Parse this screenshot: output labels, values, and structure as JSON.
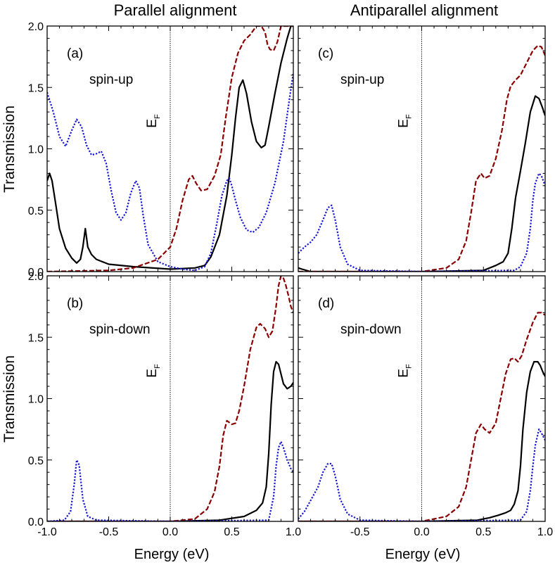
{
  "figure": {
    "col_titles": [
      "Parallel alignment",
      "Antiparallel alignment"
    ],
    "ylabel": "Transmission",
    "xlabel": "Energy (eV)",
    "ef_label_main": "E",
    "ef_label_sub": "F"
  },
  "colors": {
    "black": "#000000",
    "darkred": "#8b0000",
    "blue": "#1515d8"
  },
  "chart_data": [
    {
      "type": "line",
      "panel": "(a)",
      "annotation": "spin-up",
      "xlim": [
        -1.0,
        1.0
      ],
      "ylim": [
        0.0,
        2.0
      ],
      "xticks": [
        "-1.0",
        "-0.5",
        "0.0",
        "0.5",
        "1.0"
      ],
      "yticks": [
        "0.0",
        "0.5",
        "1.0",
        "1.5",
        "2.0"
      ],
      "series": [
        {
          "style": "solid",
          "color": "black",
          "x": [
            -1.0,
            -0.98,
            -0.96,
            -0.93,
            -0.9,
            -0.85,
            -0.8,
            -0.76,
            -0.73,
            -0.71,
            -0.69,
            -0.67,
            -0.64,
            -0.6,
            -0.5,
            -0.3,
            0.0,
            0.2,
            0.28,
            0.33,
            0.4,
            0.46,
            0.5,
            0.53,
            0.56,
            0.59,
            0.62,
            0.66,
            0.7,
            0.74,
            0.77,
            0.8,
            0.85,
            0.9,
            0.95,
            0.98,
            1.0
          ],
          "y": [
            0.74,
            0.8,
            0.74,
            0.55,
            0.35,
            0.19,
            0.11,
            0.07,
            0.1,
            0.2,
            0.35,
            0.2,
            0.14,
            0.1,
            0.06,
            0.04,
            0.02,
            0.03,
            0.05,
            0.12,
            0.3,
            0.62,
            0.95,
            1.25,
            1.5,
            1.56,
            1.45,
            1.22,
            1.06,
            1.01,
            1.03,
            1.18,
            1.45,
            1.7,
            1.9,
            2.0,
            2.0
          ]
        },
        {
          "style": "dashed",
          "color": "darkred",
          "x": [
            -1.0,
            -0.5,
            -0.3,
            -0.1,
            0.0,
            0.05,
            0.1,
            0.15,
            0.18,
            0.21,
            0.25,
            0.3,
            0.36,
            0.41,
            0.45,
            0.5,
            0.55,
            0.6,
            0.65,
            0.7,
            0.74,
            0.77,
            0.79,
            0.81,
            0.84,
            0.87,
            0.9,
            0.93,
            0.96,
            1.0
          ],
          "y": [
            0.0,
            0.01,
            0.03,
            0.1,
            0.2,
            0.35,
            0.58,
            0.75,
            0.78,
            0.72,
            0.66,
            0.67,
            0.78,
            0.95,
            1.25,
            1.58,
            1.78,
            1.88,
            1.93,
            2.0,
            2.0,
            1.95,
            1.85,
            1.81,
            1.8,
            1.87,
            2.0,
            2.0,
            2.0,
            2.0
          ]
        },
        {
          "style": "dotted",
          "color": "blue",
          "x": [
            -1.0,
            -0.95,
            -0.9,
            -0.85,
            -0.8,
            -0.76,
            -0.72,
            -0.68,
            -0.64,
            -0.6,
            -0.56,
            -0.52,
            -0.48,
            -0.44,
            -0.4,
            -0.36,
            -0.32,
            -0.28,
            -0.25,
            -0.22,
            -0.18,
            -0.1,
            0.0,
            0.1,
            0.2,
            0.28,
            0.33,
            0.38,
            0.42,
            0.46,
            0.48,
            0.5,
            0.53,
            0.57,
            0.62,
            0.67,
            0.72,
            0.78,
            0.85,
            0.92,
            0.97,
            1.0
          ],
          "y": [
            1.46,
            1.3,
            1.1,
            1.02,
            1.15,
            1.24,
            1.18,
            1.03,
            0.95,
            0.96,
            0.98,
            0.88,
            0.66,
            0.48,
            0.42,
            0.48,
            0.64,
            0.74,
            0.68,
            0.46,
            0.22,
            0.08,
            0.04,
            0.02,
            0.01,
            0.04,
            0.15,
            0.4,
            0.62,
            0.74,
            0.76,
            0.7,
            0.58,
            0.44,
            0.34,
            0.32,
            0.36,
            0.48,
            0.72,
            1.06,
            1.42,
            1.62
          ]
        }
      ]
    },
    {
      "type": "line",
      "panel": "(b)",
      "annotation": "spin-down",
      "xlim": [
        -1.0,
        1.0
      ],
      "ylim": [
        0.0,
        2.0
      ],
      "xticks": [
        "-1.0",
        "-0.5",
        "0.0",
        "0.5",
        "1.0"
      ],
      "yticks": [
        "0.0",
        "0.5",
        "1.0",
        "1.5",
        "2.0"
      ],
      "series": [
        {
          "style": "solid",
          "color": "black",
          "x": [
            -1.0,
            0.0,
            0.4,
            0.6,
            0.7,
            0.75,
            0.78,
            0.8,
            0.82,
            0.84,
            0.86,
            0.88,
            0.9,
            0.92,
            0.95,
            0.98,
            1.0
          ],
          "y": [
            0.0,
            0.0,
            0.01,
            0.04,
            0.09,
            0.15,
            0.28,
            0.55,
            0.95,
            1.22,
            1.3,
            1.28,
            1.2,
            1.12,
            1.08,
            1.1,
            1.13
          ]
        },
        {
          "style": "dashed",
          "color": "darkred",
          "x": [
            -1.0,
            0.0,
            0.2,
            0.3,
            0.36,
            0.4,
            0.43,
            0.46,
            0.5,
            0.53,
            0.56,
            0.6,
            0.65,
            0.7,
            0.73,
            0.77,
            0.8,
            0.83,
            0.86,
            0.88,
            0.9,
            0.92,
            0.94,
            0.96,
            0.98,
            1.0
          ],
          "y": [
            0.0,
            0.0,
            0.02,
            0.1,
            0.24,
            0.45,
            0.7,
            0.82,
            0.79,
            0.8,
            0.9,
            1.1,
            1.4,
            1.58,
            1.61,
            1.57,
            1.5,
            1.55,
            1.75,
            1.92,
            2.0,
            1.98,
            1.92,
            1.84,
            1.75,
            1.7
          ]
        },
        {
          "style": "dotted",
          "color": "blue",
          "x": [
            -1.0,
            -0.86,
            -0.81,
            -0.78,
            -0.76,
            -0.74,
            -0.71,
            -0.67,
            -0.6,
            0.0,
            0.8,
            0.84,
            0.86,
            0.88,
            0.9,
            0.92,
            0.95,
            0.98,
            1.0
          ],
          "y": [
            0.0,
            0.01,
            0.08,
            0.3,
            0.5,
            0.46,
            0.18,
            0.04,
            0.01,
            0.0,
            0.01,
            0.2,
            0.45,
            0.6,
            0.65,
            0.6,
            0.5,
            0.43,
            0.4
          ]
        }
      ]
    },
    {
      "type": "line",
      "panel": "(c)",
      "annotation": "spin-up",
      "xlim": [
        -1.0,
        1.0
      ],
      "ylim": [
        0.0,
        2.0
      ],
      "xticks": [
        "-1.0",
        "-0.5",
        "0.0",
        "0.5",
        "1.0"
      ],
      "yticks": [
        "0.0",
        "0.5",
        "1.0",
        "1.5",
        "2.0"
      ],
      "series": [
        {
          "style": "solid",
          "color": "black",
          "x": [
            -1.0,
            -0.97,
            -0.9,
            0.0,
            0.5,
            0.6,
            0.66,
            0.7,
            0.73,
            0.76,
            0.8,
            0.84,
            0.88,
            0.92,
            0.95,
            0.98,
            1.0
          ],
          "y": [
            0.03,
            0.02,
            0.0,
            0.0,
            0.01,
            0.05,
            0.08,
            0.15,
            0.35,
            0.6,
            0.82,
            1.05,
            1.3,
            1.43,
            1.41,
            1.33,
            1.27
          ]
        },
        {
          "style": "dashed",
          "color": "darkred",
          "x": [
            -1.0,
            0.0,
            0.2,
            0.3,
            0.36,
            0.4,
            0.44,
            0.48,
            0.51,
            0.55,
            0.6,
            0.65,
            0.69,
            0.72,
            0.76,
            0.8,
            0.85,
            0.9,
            0.94,
            0.97,
            1.0
          ],
          "y": [
            0.0,
            0.0,
            0.03,
            0.1,
            0.25,
            0.48,
            0.74,
            0.8,
            0.76,
            0.78,
            0.92,
            1.15,
            1.4,
            1.51,
            1.56,
            1.6,
            1.7,
            1.8,
            1.84,
            1.83,
            1.76
          ]
        },
        {
          "style": "dotted",
          "color": "blue",
          "x": [
            -1.0,
            -0.95,
            -0.9,
            -0.85,
            -0.8,
            -0.76,
            -0.73,
            -0.7,
            -0.66,
            -0.6,
            -0.5,
            0.0,
            0.75,
            0.8,
            0.85,
            0.88,
            0.9,
            0.92,
            0.95,
            0.97,
            1.0
          ],
          "y": [
            0.15,
            0.2,
            0.24,
            0.3,
            0.42,
            0.52,
            0.54,
            0.42,
            0.2,
            0.06,
            0.01,
            0.0,
            0.01,
            0.04,
            0.15,
            0.35,
            0.58,
            0.72,
            0.8,
            0.78,
            0.7
          ]
        }
      ]
    },
    {
      "type": "line",
      "panel": "(d)",
      "annotation": "spin-down",
      "xlim": [
        -1.0,
        1.0
      ],
      "ylim": [
        0.0,
        2.0
      ],
      "xticks": [
        "-1.0",
        "-0.5",
        "0.0",
        "0.5",
        "1.0"
      ],
      "yticks": [
        "0.0",
        "0.5",
        "1.0",
        "1.5",
        "2.0"
      ],
      "series": [
        {
          "style": "solid",
          "color": "black",
          "x": [
            -1.0,
            0.0,
            0.45,
            0.55,
            0.62,
            0.68,
            0.72,
            0.75,
            0.78,
            0.8,
            0.82,
            0.85,
            0.88,
            0.91,
            0.94,
            0.96,
            0.98,
            1.0
          ],
          "y": [
            0.0,
            0.0,
            0.01,
            0.03,
            0.05,
            0.07,
            0.09,
            0.14,
            0.25,
            0.45,
            0.75,
            1.05,
            1.22,
            1.3,
            1.3,
            1.27,
            1.22,
            1.18
          ]
        },
        {
          "style": "dashed",
          "color": "darkred",
          "x": [
            -1.0,
            0.0,
            0.2,
            0.3,
            0.36,
            0.4,
            0.44,
            0.48,
            0.51,
            0.55,
            0.6,
            0.64,
            0.68,
            0.72,
            0.75,
            0.78,
            0.81,
            0.85,
            0.9,
            0.94,
            0.97,
            1.0
          ],
          "y": [
            0.0,
            0.0,
            0.04,
            0.12,
            0.28,
            0.5,
            0.72,
            0.79,
            0.75,
            0.72,
            0.8,
            1.0,
            1.2,
            1.32,
            1.33,
            1.3,
            1.35,
            1.48,
            1.62,
            1.7,
            1.7,
            1.68
          ]
        },
        {
          "style": "dotted",
          "color": "blue",
          "x": [
            -1.0,
            -0.95,
            -0.9,
            -0.84,
            -0.8,
            -0.76,
            -0.73,
            -0.7,
            -0.66,
            -0.6,
            -0.5,
            0.0,
            0.8,
            0.85,
            0.88,
            0.9,
            0.92,
            0.95,
            0.97,
            1.0
          ],
          "y": [
            0.02,
            0.08,
            0.17,
            0.28,
            0.4,
            0.47,
            0.47,
            0.37,
            0.18,
            0.06,
            0.01,
            0.0,
            0.01,
            0.08,
            0.25,
            0.45,
            0.62,
            0.75,
            0.72,
            0.66
          ]
        }
      ]
    }
  ]
}
